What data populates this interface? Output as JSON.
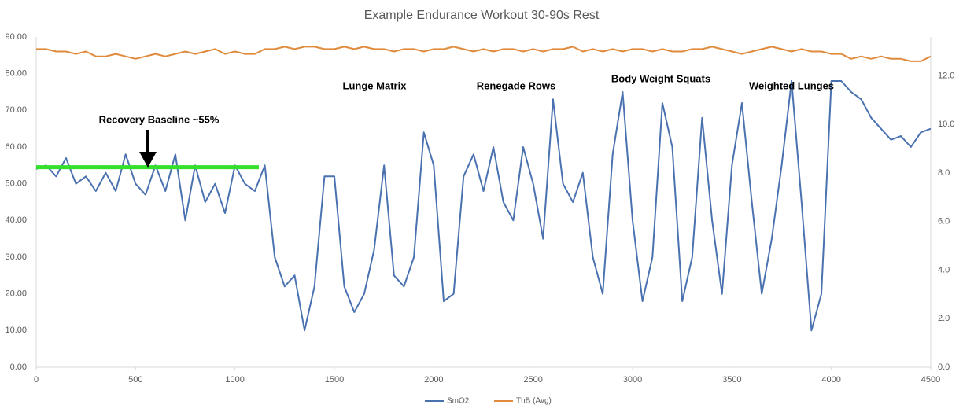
{
  "chart_data": {
    "type": "line",
    "title": "Example Endurance Workout 30-90s Rest",
    "x": [
      0,
      50,
      100,
      150,
      200,
      250,
      300,
      350,
      400,
      450,
      500,
      550,
      600,
      650,
      700,
      750,
      800,
      850,
      900,
      950,
      1000,
      1050,
      1100,
      1150,
      1200,
      1250,
      1300,
      1350,
      1400,
      1450,
      1500,
      1550,
      1600,
      1650,
      1700,
      1750,
      1800,
      1850,
      1900,
      1950,
      2000,
      2050,
      2100,
      2150,
      2200,
      2250,
      2300,
      2350,
      2400,
      2450,
      2500,
      2550,
      2600,
      2650,
      2700,
      2750,
      2800,
      2850,
      2900,
      2950,
      3000,
      3050,
      3100,
      3150,
      3200,
      3250,
      3300,
      3350,
      3400,
      3450,
      3500,
      3550,
      3600,
      3650,
      3700,
      3750,
      3800,
      3850,
      3900,
      3950,
      4000,
      4050,
      4100,
      4150,
      4200,
      4250,
      4300,
      4350,
      4400,
      4450,
      4500
    ],
    "series": [
      {
        "name": "SmO2",
        "color": "#4a72b0",
        "values": [
          54,
          55,
          52,
          57,
          50,
          52,
          48,
          53,
          48,
          58,
          50,
          47,
          55,
          48,
          58,
          40,
          55,
          45,
          50,
          42,
          55,
          50,
          48,
          55,
          30,
          22,
          25,
          10,
          22,
          52,
          52,
          22,
          15,
          20,
          32,
          55,
          25,
          22,
          30,
          64,
          55,
          18,
          20,
          52,
          58,
          48,
          60,
          45,
          40,
          60,
          50,
          35,
          73,
          50,
          45,
          53,
          30,
          20,
          58,
          75,
          40,
          18,
          30,
          72,
          60,
          18,
          30,
          68,
          40,
          20,
          55,
          72,
          45,
          20,
          35,
          55,
          78,
          45,
          10,
          20,
          78,
          78,
          75,
          73,
          68,
          65,
          62,
          63,
          60,
          64,
          65
        ]
      },
      {
        "name": "ThB (Avg)",
        "color": "#e08a3c",
        "axis": "y2",
        "values": [
          13.1,
          13.1,
          13.0,
          13.0,
          12.9,
          13.0,
          12.8,
          12.8,
          12.9,
          12.8,
          12.7,
          12.8,
          12.9,
          12.8,
          12.9,
          13.0,
          12.9,
          13.0,
          13.1,
          12.9,
          13.0,
          12.9,
          12.9,
          13.1,
          13.1,
          13.2,
          13.1,
          13.2,
          13.2,
          13.1,
          13.1,
          13.2,
          13.1,
          13.2,
          13.1,
          13.1,
          13.0,
          13.1,
          13.1,
          13.0,
          13.1,
          13.1,
          13.2,
          13.1,
          13.0,
          13.1,
          13.0,
          13.1,
          13.1,
          13.0,
          13.1,
          13.0,
          13.1,
          13.1,
          13.2,
          13.0,
          13.1,
          13.0,
          13.1,
          13.0,
          13.1,
          13.1,
          13.0,
          13.1,
          13.0,
          13.0,
          13.1,
          13.1,
          13.2,
          13.1,
          13.0,
          12.9,
          13.0,
          13.1,
          13.2,
          13.1,
          13.0,
          13.1,
          13.0,
          13.0,
          12.9,
          12.9,
          12.7,
          12.8,
          12.7,
          12.8,
          12.7,
          12.7,
          12.6,
          12.6,
          12.8
        ]
      }
    ],
    "xlim": [
      0,
      4500
    ],
    "xticks": [
      0,
      500,
      1000,
      1500,
      2000,
      2500,
      3000,
      3500,
      4000,
      4500
    ],
    "ylim": [
      0,
      90
    ],
    "yticks": [
      {
        "value": 0,
        "label": "0.00"
      },
      {
        "value": 10,
        "label": "10.00"
      },
      {
        "value": 20,
        "label": "20.00"
      },
      {
        "value": 30,
        "label": "30.00"
      },
      {
        "value": 40,
        "label": "40.00"
      },
      {
        "value": 50,
        "label": "50.00"
      },
      {
        "value": 60,
        "label": "60.00"
      },
      {
        "value": 70,
        "label": "70.00"
      },
      {
        "value": 80,
        "label": "80.00"
      },
      {
        "value": 90,
        "label": "90.00"
      }
    ],
    "y2lim": [
      0,
      13.6
    ],
    "y2ticks": [
      {
        "value": 0,
        "label": "0.0"
      },
      {
        "value": 2,
        "label": "2.0"
      },
      {
        "value": 4,
        "label": "4.0"
      },
      {
        "value": 6,
        "label": "6.0"
      },
      {
        "value": 8,
        "label": "8.0"
      },
      {
        "value": 10,
        "label": "10.0"
      },
      {
        "value": 12,
        "label": "12.0"
      }
    ],
    "grid": false,
    "legend": "bottom",
    "reference_line": {
      "value": 54.5,
      "x": [
        0,
        1120
      ],
      "color": "#33e02a"
    },
    "annotations": [
      "Recovery Baseline ~55%",
      "Lunge Matrix",
      "Renegade Rows",
      "Body Weight Squats",
      "Weighted Lunges"
    ]
  }
}
